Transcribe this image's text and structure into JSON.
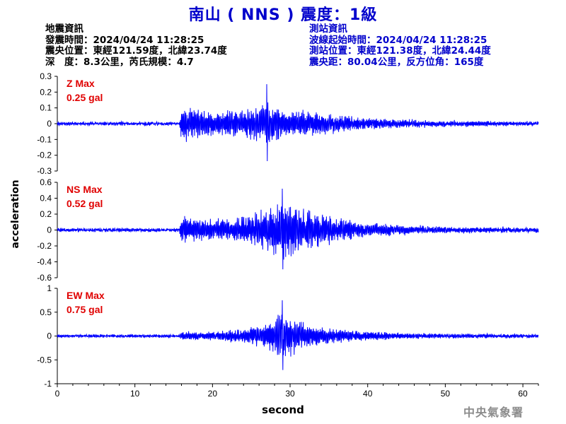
{
  "title": "南山 ( NNS ) 震度：1級",
  "quake_info": {
    "heading": "地震資訊",
    "origin_time": "發震時間：2024/04/24 11:28:25",
    "epicenter": "震央位置：東經121.59度，北緯23.74度",
    "depth_mag": "深　度：8.3公里，芮氏規模：4.7"
  },
  "station_info": {
    "heading": "測站資訊",
    "wave_start": "波線起始時間：2024/04/24 11:28:25",
    "station_loc": "測站位置：東經121.38度，北緯24.44度",
    "distance": "震央距：80.04公里，反方位角：165度"
  },
  "agency": "中央氣象署",
  "colors": {
    "title": "#0000cc",
    "trace": "#0000ff",
    "panel_label": "#e00000",
    "axis": "#000000",
    "agency": "#8c8c8c"
  },
  "chart_data": {
    "type": "line",
    "xlabel": "second",
    "ylabel": "acceleration",
    "xlim": [
      0,
      62
    ],
    "x_ticks": [
      0,
      10,
      20,
      30,
      40,
      50,
      60
    ],
    "x_tick_labels": [
      "0",
      "10",
      "20",
      "30",
      "40",
      "50",
      "60"
    ],
    "panels": [
      {
        "name": "Z",
        "label": "Z Max",
        "max_label": "0.25 gal",
        "peak": 0.25,
        "ylim": [
          -0.3,
          0.3
        ],
        "y_ticks": [
          0.3,
          0.2,
          0.1,
          0,
          -0.1,
          -0.2,
          -0.3
        ],
        "y_tick_labels": [
          "0.3",
          "0.2",
          "0.1",
          "0",
          "-0.1",
          "-0.2",
          "-0.3"
        ],
        "noise": 0.006,
        "envelope": [
          [
            0,
            0.01
          ],
          [
            15.7,
            0.01
          ],
          [
            16,
            0.13
          ],
          [
            18,
            0.1
          ],
          [
            21,
            0.08
          ],
          [
            24,
            0.1
          ],
          [
            27,
            0.14
          ],
          [
            29,
            0.1
          ],
          [
            32,
            0.09
          ],
          [
            36,
            0.06
          ],
          [
            40,
            0.04
          ],
          [
            45,
            0.025
          ],
          [
            50,
            0.02
          ],
          [
            55,
            0.015
          ],
          [
            62,
            0.012
          ]
        ]
      },
      {
        "name": "NS",
        "label": "NS Max",
        "max_label": "0.52 gal",
        "peak": 0.52,
        "ylim": [
          -0.6,
          0.6
        ],
        "y_ticks": [
          0.6,
          0.4,
          0.2,
          0,
          -0.2,
          -0.4,
          -0.6
        ],
        "y_tick_labels": [
          "0.6",
          "0.4",
          "0.2",
          "0",
          "-0.2",
          "-0.4",
          "-0.6"
        ],
        "noise": 0.012,
        "envelope": [
          [
            0,
            0.02
          ],
          [
            15.7,
            0.02
          ],
          [
            16,
            0.18
          ],
          [
            19,
            0.14
          ],
          [
            22,
            0.15
          ],
          [
            25,
            0.2
          ],
          [
            28,
            0.35
          ],
          [
            29,
            0.42
          ],
          [
            31,
            0.3
          ],
          [
            34,
            0.22
          ],
          [
            38,
            0.12
          ],
          [
            42,
            0.08
          ],
          [
            46,
            0.06
          ],
          [
            50,
            0.04
          ],
          [
            55,
            0.035
          ],
          [
            62,
            0.03
          ]
        ]
      },
      {
        "name": "EW",
        "label": "EW Max",
        "max_label": "0.75 gal",
        "peak": 0.75,
        "ylim": [
          -1,
          1
        ],
        "y_ticks": [
          1,
          0.5,
          0,
          -0.5,
          -1
        ],
        "y_tick_labels": [
          "1",
          "0.5",
          "0",
          "-0.5",
          "-1"
        ],
        "noise": 0.015,
        "envelope": [
          [
            0,
            0.03
          ],
          [
            15.7,
            0.03
          ],
          [
            16,
            0.1
          ],
          [
            20,
            0.1
          ],
          [
            24,
            0.15
          ],
          [
            27,
            0.3
          ],
          [
            29,
            0.55
          ],
          [
            31,
            0.35
          ],
          [
            34,
            0.2
          ],
          [
            38,
            0.12
          ],
          [
            42,
            0.08
          ],
          [
            46,
            0.06
          ],
          [
            50,
            0.05
          ],
          [
            55,
            0.045
          ],
          [
            62,
            0.04
          ]
        ]
      }
    ]
  }
}
